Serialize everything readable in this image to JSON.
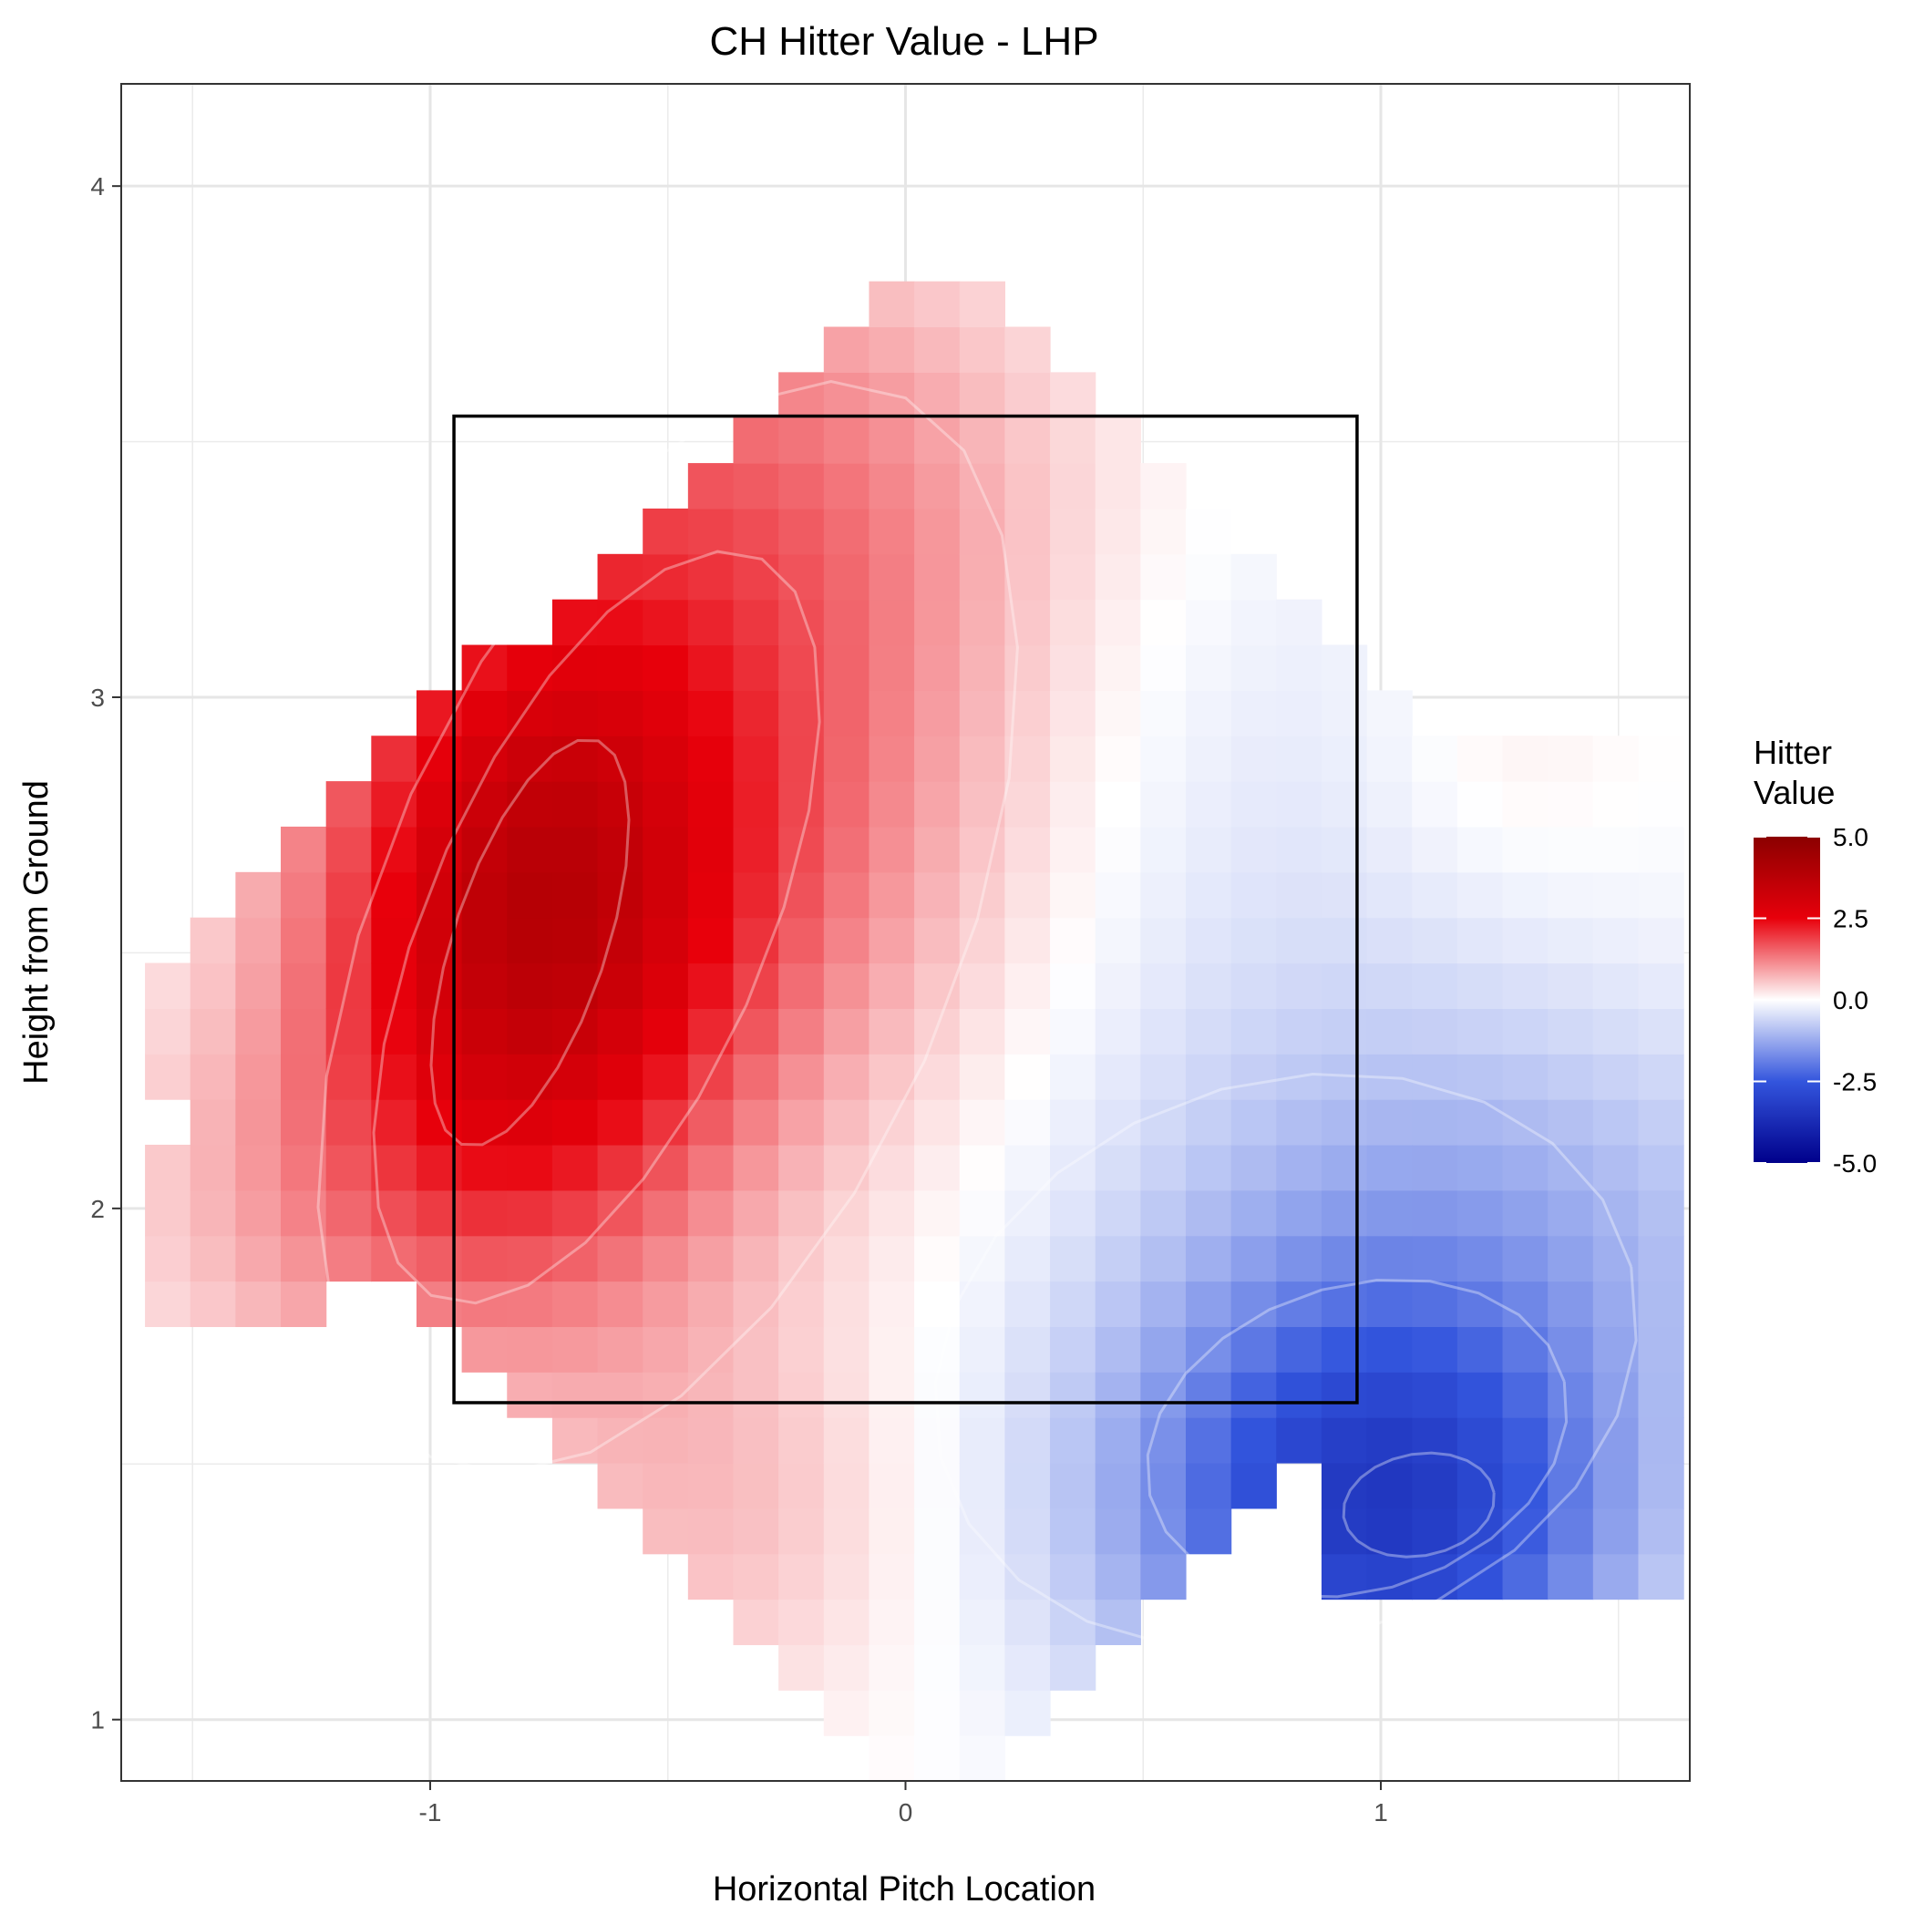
{
  "chart_data": {
    "type": "heatmap",
    "title": "CH Hitter Value - LHP",
    "xlabel": "Horizontal Pitch Location",
    "ylabel": "Height from Ground",
    "xlim": [
      -1.65,
      1.65
    ],
    "ylim": [
      0.88,
      4.2
    ],
    "x_ticks": [
      -1,
      0,
      1
    ],
    "y_ticks": [
      1,
      2,
      3,
      4
    ],
    "x_tick_labels": [
      "-1",
      "0",
      "1"
    ],
    "y_tick_labels": [
      "1",
      "2",
      "3",
      "4"
    ],
    "grid": true,
    "strike_zone": {
      "x": [
        -0.95,
        0.95
      ],
      "y": [
        1.62,
        3.55
      ]
    },
    "legend": {
      "title_lines": [
        "Hitter",
        "Value"
      ],
      "position": "right",
      "range": [
        -5,
        5
      ],
      "breaks": [
        5,
        2.5,
        0,
        -2.5,
        -5
      ],
      "break_labels": [
        "5.0",
        "2.5",
        "0.0",
        "-2.5",
        "-5.0"
      ]
    },
    "color_scale": {
      "low": "#00008b",
      "mid_low": "#3355dd",
      "mid": "#ffffff",
      "mid_high": "#e8000b",
      "high": "#8b0000"
    },
    "value_field": {
      "description": "estimated surface",
      "cell_width": 0.0952,
      "cell_height": 0.0889,
      "hot_spot": {
        "x": -0.8,
        "y": 2.55,
        "value": 3.1
      },
      "cold_spot": {
        "x": 1.05,
        "y": 1.4,
        "value": -2.6
      }
    }
  }
}
